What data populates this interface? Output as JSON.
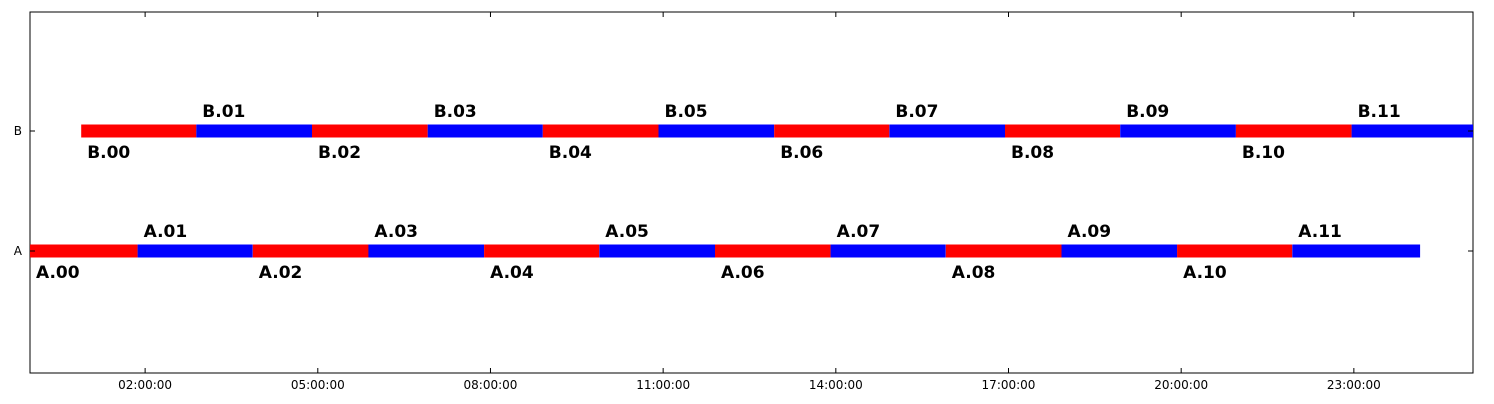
{
  "chart_data": {
    "type": "bar",
    "orientation": "horizontal",
    "chart_kind": "timeline",
    "title": "",
    "xlabel": "",
    "ylabel": "",
    "x_unit": "hours",
    "xlim": [
      0.0,
      25.07
    ],
    "xticks": [
      {
        "value": 2,
        "label": "02:00:00"
      },
      {
        "value": 5,
        "label": "05:00:00"
      },
      {
        "value": 8,
        "label": "08:00:00"
      },
      {
        "value": 11,
        "label": "11:00:00"
      },
      {
        "value": 14,
        "label": "14:00:00"
      },
      {
        "value": 17,
        "label": "17:00:00"
      },
      {
        "value": 20,
        "label": "20:00:00"
      },
      {
        "value": 23,
        "label": "23:00:00"
      }
    ],
    "categories": [
      "A",
      "B"
    ],
    "grid": false,
    "legend": "none",
    "colors": {
      "even": "#ff0000",
      "odd": "#0000ff"
    },
    "series": [
      {
        "category": "A",
        "segments": [
          {
            "label": "A.00",
            "start": 0.0,
            "end": 1.87
          },
          {
            "label": "A.01",
            "start": 1.87,
            "end": 3.87
          },
          {
            "label": "A.02",
            "start": 3.87,
            "end": 5.88
          },
          {
            "label": "A.03",
            "start": 5.88,
            "end": 7.89
          },
          {
            "label": "A.04",
            "start": 7.89,
            "end": 9.89
          },
          {
            "label": "A.05",
            "start": 9.89,
            "end": 11.9
          },
          {
            "label": "A.06",
            "start": 11.9,
            "end": 13.91
          },
          {
            "label": "A.07",
            "start": 13.91,
            "end": 15.91
          },
          {
            "label": "A.08",
            "start": 15.91,
            "end": 17.92
          },
          {
            "label": "A.09",
            "start": 17.92,
            "end": 19.93
          },
          {
            "label": "A.10",
            "start": 19.93,
            "end": 21.93
          },
          {
            "label": "A.11",
            "start": 21.93,
            "end": 24.15
          }
        ]
      },
      {
        "category": "B",
        "segments": [
          {
            "label": "B.00",
            "start": 0.89,
            "end": 2.89
          },
          {
            "label": "B.01",
            "start": 2.89,
            "end": 4.9
          },
          {
            "label": "B.02",
            "start": 4.9,
            "end": 6.91
          },
          {
            "label": "B.03",
            "start": 6.91,
            "end": 8.91
          },
          {
            "label": "B.04",
            "start": 8.91,
            "end": 10.92
          },
          {
            "label": "B.05",
            "start": 10.92,
            "end": 12.93
          },
          {
            "label": "B.06",
            "start": 12.93,
            "end": 14.93
          },
          {
            "label": "B.07",
            "start": 14.93,
            "end": 16.94
          },
          {
            "label": "B.08",
            "start": 16.94,
            "end": 18.94
          },
          {
            "label": "B.09",
            "start": 18.94,
            "end": 20.95
          },
          {
            "label": "B.10",
            "start": 20.95,
            "end": 22.96
          },
          {
            "label": "B.11",
            "start": 22.96,
            "end": 25.07
          }
        ]
      }
    ]
  }
}
